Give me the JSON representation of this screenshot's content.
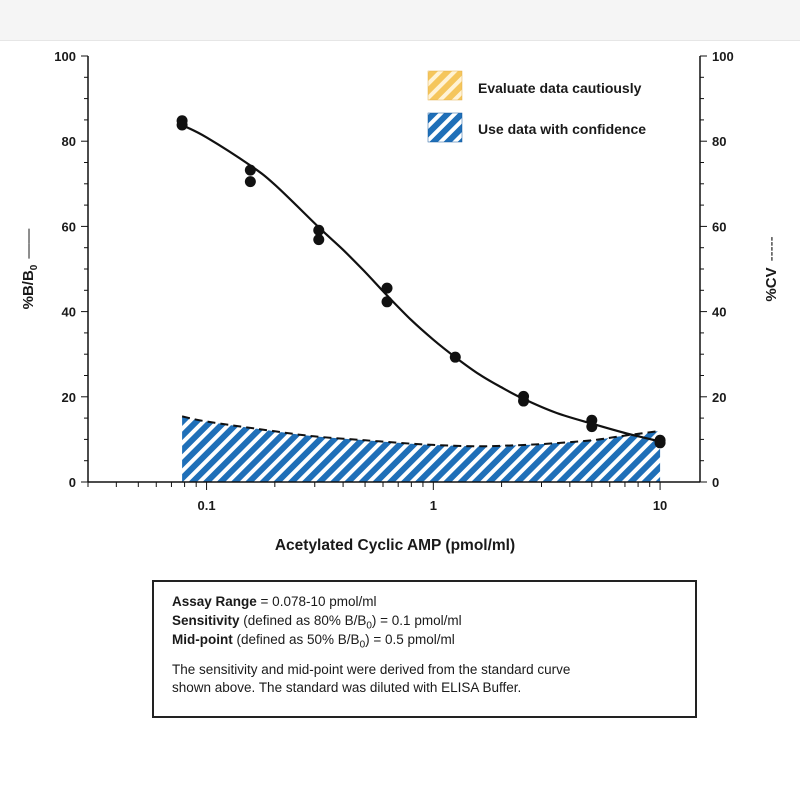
{
  "chart_data": {
    "type": "scatter",
    "xlabel": "Acetylated Cyclic AMP (pmol/ml)",
    "ylabel_left": "%B/B",
    "ylabel_left_subscript": "0",
    "ylabel_left_line": "——",
    "ylabel_right": "%CV",
    "ylabel_right_line": "-----",
    "x_scale": "log",
    "xlim": [
      0.03,
      15
    ],
    "ylim": [
      0,
      100
    ],
    "x_ticks": [
      0.1,
      1,
      10
    ],
    "x_tick_labels": [
      "0.1",
      "1",
      "10"
    ],
    "y_ticks": [
      0,
      20,
      40,
      60,
      80,
      100
    ],
    "y_tick_labels": [
      "0",
      "20",
      "40",
      "60",
      "80",
      "100"
    ],
    "grid": false,
    "legend_position": "top-right",
    "legend": [
      {
        "label": "Evaluate data cautiously",
        "color": "#f5c65c"
      },
      {
        "label": "Use data with confidence",
        "color": "#1f6fb8"
      }
    ],
    "series": [
      {
        "type": "scatter",
        "axis": "left",
        "x": [
          0.078,
          0.078,
          0.156,
          0.156,
          0.3125,
          0.3125,
          0.625,
          0.625,
          1.25,
          2.5,
          2.5,
          5,
          5,
          10,
          10
        ],
        "y": [
          84.8,
          83.8,
          73.2,
          70.5,
          59.1,
          56.9,
          45.5,
          42.3,
          29.3,
          20.1,
          19.0,
          14.5,
          13.0,
          9.8,
          9.2
        ]
      },
      {
        "type": "line",
        "axis": "left",
        "style": "solid",
        "x": [
          0.078,
          0.1,
          0.156,
          0.2,
          0.3125,
          0.4,
          0.5,
          0.625,
          0.8,
          1,
          1.25,
          1.6,
          2,
          2.5,
          3.5,
          5,
          7,
          10
        ],
        "y": [
          83.8,
          80.9,
          74.3,
          69.8,
          59.8,
          54.5,
          49.3,
          43.8,
          38.0,
          33.4,
          29.3,
          25.2,
          22.2,
          19.5,
          16.2,
          13.7,
          11.5,
          9.5
        ]
      },
      {
        "type": "area",
        "axis": "right",
        "style": "dashed",
        "fill": "confidence",
        "x": [
          0.078,
          0.1,
          0.2,
          0.3,
          0.5,
          0.8,
          1,
          1.5,
          2,
          3,
          5,
          7,
          10
        ],
        "y": [
          15.4,
          14.2,
          11.9,
          10.7,
          9.8,
          9.0,
          8.7,
          8.4,
          8.5,
          8.9,
          9.8,
          10.9,
          12.0
        ]
      }
    ]
  },
  "info": {
    "assay_range_label": "Assay Range",
    "assay_range_text": " = 0.078-10 pmol/ml",
    "sensitivity_label": "Sensitivity",
    "sensitivity_text_pre": " (defined as 80% B/B",
    "sensitivity_sub": "0",
    "sensitivity_text_post": ") = 0.1 pmol/ml",
    "midpoint_label": "Mid-point",
    "midpoint_text_pre": " (defined as 50% B/B",
    "midpoint_sub": "0",
    "midpoint_text_post": ") = 0.5 pmol/ml",
    "note_line1": "The sensitivity and mid-point were derived from the standard curve",
    "note_line2": "shown above. The standard was diluted with ELISA Buffer."
  }
}
